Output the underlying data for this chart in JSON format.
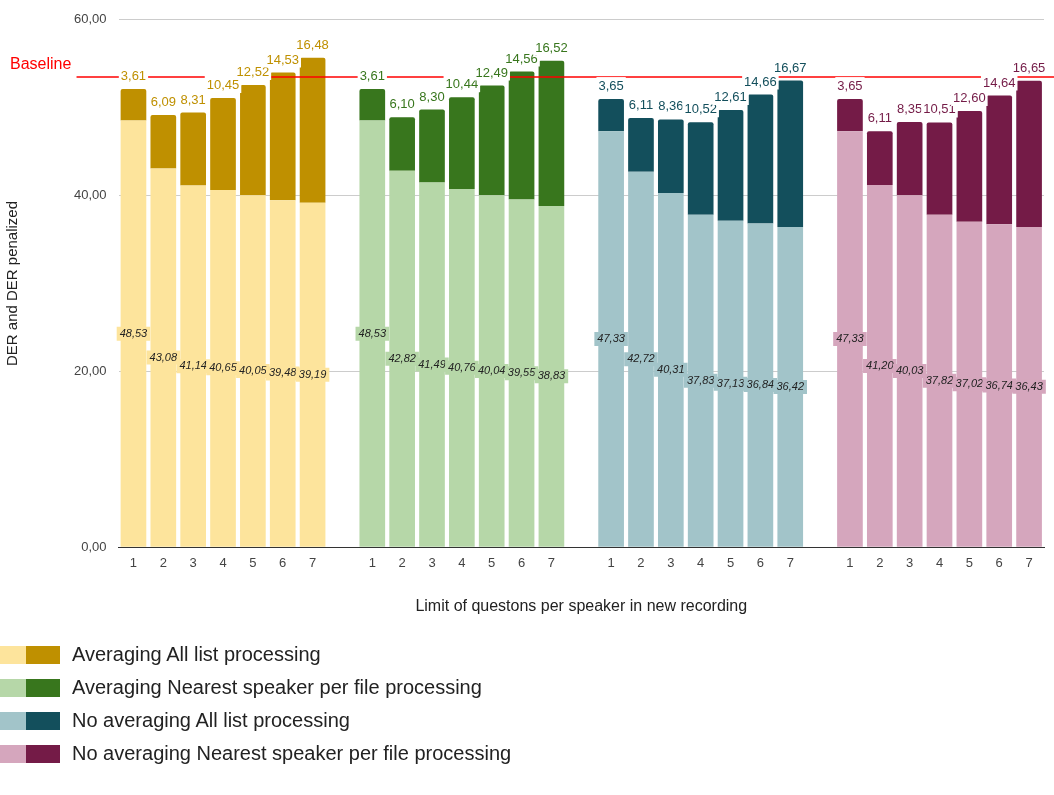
{
  "chart_data": {
    "type": "bar",
    "stacked": true,
    "xlabel": "Limit of questons per speaker in new recording",
    "ylabel": "DER and DER penalized",
    "categories": [
      "1",
      "2",
      "3",
      "4",
      "5",
      "6",
      "7",
      null,
      "1",
      "2",
      "3",
      "4",
      "5",
      "6",
      "7",
      null,
      "1",
      "2",
      "3",
      "4",
      "5",
      "6",
      "7",
      null,
      "1",
      "2",
      "3",
      "4",
      "5",
      "6",
      "7"
    ],
    "ylim": [
      0,
      60
    ],
    "yticks": [
      {
        "value": 0,
        "label": "0,00"
      },
      {
        "value": 20,
        "label": "20,00"
      },
      {
        "value": 40,
        "label": "40,00"
      },
      {
        "value": 60,
        "label": "60,00"
      }
    ],
    "grid": "y",
    "legend": "bottom",
    "ref_lines": [
      {
        "axis": "y",
        "value": 53.5,
        "label": "Baseline",
        "color": "#ff0000"
      }
    ],
    "series": [
      {
        "color": "#fde49c",
        "values": [
          48.53,
          43.08,
          41.14,
          40.65,
          40.05,
          39.48,
          39.19,
          null,
          null,
          null,
          null,
          null,
          null,
          null,
          null,
          null,
          null,
          null,
          null,
          null,
          null,
          null,
          null,
          null,
          null,
          null,
          null,
          null,
          null,
          null,
          null
        ],
        "value_labels": [
          "48,53",
          "43,08",
          "41,14",
          "40,65",
          "40,05",
          "39,48",
          "39,19",
          null,
          null,
          null,
          null,
          null,
          null,
          null,
          null,
          null,
          null,
          null,
          null,
          null,
          null,
          null,
          null,
          null,
          null,
          null,
          null,
          null,
          null,
          null,
          null
        ]
      },
      {
        "name": "Averaging All list processing",
        "color": "#bf9000",
        "values": [
          3.61,
          6.09,
          8.31,
          10.45,
          12.52,
          14.53,
          16.48,
          null,
          null,
          null,
          null,
          null,
          null,
          null,
          null,
          null,
          null,
          null,
          null,
          null,
          null,
          null,
          null,
          null,
          null,
          null,
          null,
          null,
          null,
          null,
          null
        ],
        "value_labels": [
          "3,61",
          "6,09",
          "8,31",
          "10,45",
          "12,52",
          "14,53",
          "16,48",
          null,
          null,
          null,
          null,
          null,
          null,
          null,
          null,
          null,
          null,
          null,
          null,
          null,
          null,
          null,
          null,
          null,
          null,
          null,
          null,
          null,
          null,
          null,
          null
        ]
      },
      {
        "color": "#b6d7a8",
        "values": [
          null,
          null,
          null,
          null,
          null,
          null,
          null,
          null,
          48.53,
          42.82,
          41.49,
          40.76,
          40.04,
          39.55,
          38.83,
          null,
          null,
          null,
          null,
          null,
          null,
          null,
          null,
          null,
          null,
          null,
          null,
          null,
          null,
          null,
          null
        ],
        "value_labels": [
          null,
          null,
          null,
          null,
          null,
          null,
          null,
          null,
          "48,53",
          "42,82",
          "41,49",
          "40,76",
          "40,04",
          "39,55",
          "38,83",
          null,
          null,
          null,
          null,
          null,
          null,
          null,
          null,
          null,
          null,
          null,
          null,
          null,
          null,
          null,
          null
        ]
      },
      {
        "name": "Averaging Nearest speaker per file processing",
        "color": "#38761d",
        "values": [
          null,
          null,
          null,
          null,
          null,
          null,
          null,
          null,
          3.61,
          6.1,
          8.3,
          10.44,
          12.49,
          14.56,
          16.52,
          null,
          null,
          null,
          null,
          null,
          null,
          null,
          null,
          null,
          null,
          null,
          null,
          null,
          null,
          null,
          null
        ],
        "value_labels": [
          null,
          null,
          null,
          null,
          null,
          null,
          null,
          null,
          "3,61",
          "6,10",
          "8,30",
          "10,44",
          "12,49",
          "14,56",
          "16,52",
          null,
          null,
          null,
          null,
          null,
          null,
          null,
          null,
          null,
          null,
          null,
          null,
          null,
          null,
          null,
          null
        ]
      },
      {
        "color": "#a2c4c9",
        "values": [
          null,
          null,
          null,
          null,
          null,
          null,
          null,
          null,
          null,
          null,
          null,
          null,
          null,
          null,
          null,
          null,
          47.33,
          42.72,
          40.31,
          37.83,
          37.13,
          36.84,
          36.42,
          null,
          null,
          null,
          null,
          null,
          null,
          null,
          null
        ],
        "value_labels": [
          null,
          null,
          null,
          null,
          null,
          null,
          null,
          null,
          null,
          null,
          null,
          null,
          null,
          null,
          null,
          null,
          "47,33",
          "42,72",
          "40,31",
          "37,83",
          "37,13",
          "36,84",
          "36,42",
          null,
          null,
          null,
          null,
          null,
          null,
          null,
          null
        ]
      },
      {
        "name": "No averaging All list processing",
        "color": "#134f5c",
        "values": [
          null,
          null,
          null,
          null,
          null,
          null,
          null,
          null,
          null,
          null,
          null,
          null,
          null,
          null,
          null,
          null,
          3.65,
          6.11,
          8.36,
          10.52,
          12.61,
          14.66,
          16.67,
          null,
          null,
          null,
          null,
          null,
          null,
          null,
          null
        ],
        "value_labels": [
          null,
          null,
          null,
          null,
          null,
          null,
          null,
          null,
          null,
          null,
          null,
          null,
          null,
          null,
          null,
          null,
          "3,65",
          "6,11",
          "8,36",
          "10,52",
          "12,61",
          "14,66",
          "16,67",
          null,
          null,
          null,
          null,
          null,
          null,
          null,
          null
        ]
      },
      {
        "color": "#d5a6bd",
        "values": [
          null,
          null,
          null,
          null,
          null,
          null,
          null,
          null,
          null,
          null,
          null,
          null,
          null,
          null,
          null,
          null,
          null,
          null,
          null,
          null,
          null,
          null,
          null,
          null,
          47.33,
          41.2,
          40.03,
          37.82,
          37.02,
          36.74,
          36.43
        ],
        "value_labels": [
          null,
          null,
          null,
          null,
          null,
          null,
          null,
          null,
          null,
          null,
          null,
          null,
          null,
          null,
          null,
          null,
          null,
          null,
          null,
          null,
          null,
          null,
          null,
          null,
          "47,33",
          "41,20",
          "40,03",
          "37,82",
          "37,02",
          "36,74",
          "36,43"
        ]
      },
      {
        "name": "No averaging Nearest speaker per file processing",
        "color": "#741b47",
        "values": [
          null,
          null,
          null,
          null,
          null,
          null,
          null,
          null,
          null,
          null,
          null,
          null,
          null,
          null,
          null,
          null,
          null,
          null,
          null,
          null,
          null,
          null,
          null,
          null,
          3.65,
          6.11,
          8.35,
          10.51,
          12.6,
          14.64,
          16.65
        ],
        "value_labels": [
          null,
          null,
          null,
          null,
          null,
          null,
          null,
          null,
          null,
          null,
          null,
          null,
          null,
          null,
          null,
          null,
          null,
          null,
          null,
          null,
          null,
          null,
          null,
          null,
          "3,65",
          "6,11",
          "8,35",
          "10,51",
          "12,60",
          "14,64",
          "16,65"
        ]
      }
    ]
  }
}
